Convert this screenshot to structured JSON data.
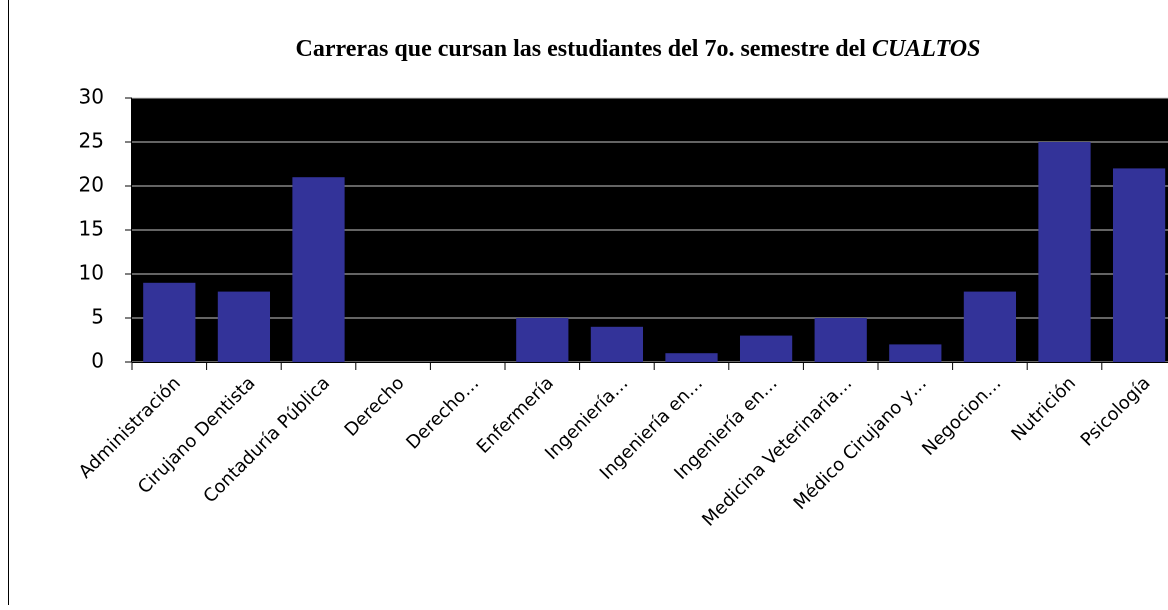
{
  "chart_data": {
    "type": "bar",
    "title": [
      "Carreras que cursan las estudiantes del 7o. semestre del",
      "CUALTOS"
    ],
    "categories": [
      "Administración",
      "Cirujano Dentista",
      "Contaduría Pública",
      "Derecho",
      "Derecho…",
      "Enfermería",
      "Ingeniería…",
      "Ingeniería en…",
      "Ingeniería en…",
      "Medicina Veterinaria…",
      "Médico Cirujano y…",
      "Negocion…",
      "Nutrición",
      "Psicología"
    ],
    "values": [
      9,
      8,
      21,
      0,
      0,
      5,
      4,
      1,
      3,
      5,
      2,
      8,
      25,
      22
    ],
    "color": "#333399",
    "background": "#000000",
    "ylim": [
      0,
      30
    ],
    "yticks": [
      0,
      5,
      10,
      15,
      20,
      25,
      30
    ],
    "grid": true
  }
}
